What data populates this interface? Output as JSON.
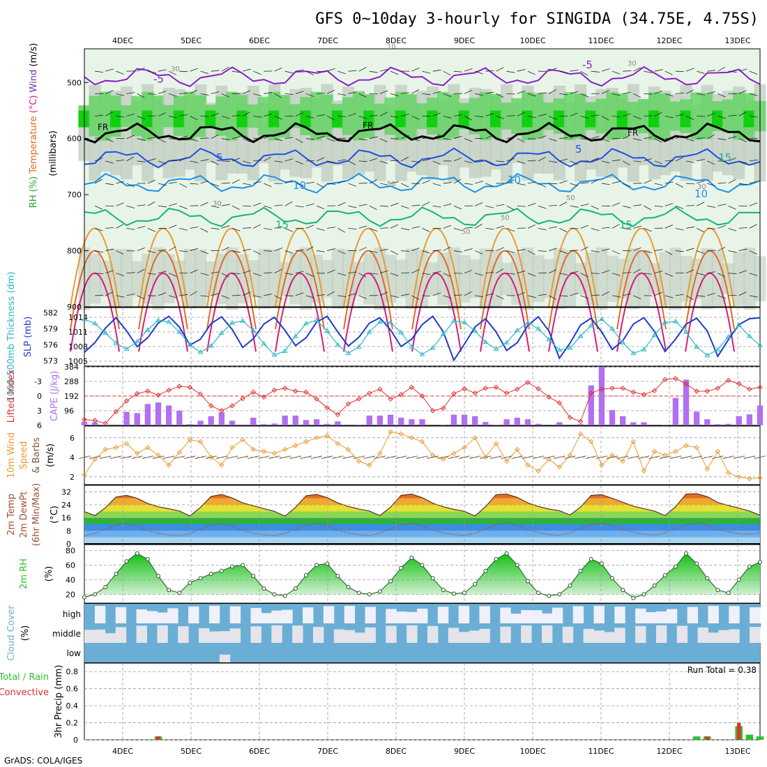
{
  "title": "GFS 0~10day 3-hourly for SINGIDA (34.75E, 4.75S)",
  "footer": "GrADS: COLA/IGES",
  "colors": {
    "rh_light": "#e8f4e8",
    "rh_mid": "#c8e6c8",
    "rh_gray": "#c0ccc0",
    "rh_green": "#5ed35e",
    "rh_bright": "#10d010",
    "t_purple": "#8a1ec8",
    "t_blue": "#1e50e0",
    "t_sky": "#1e90e8",
    "t_teal": "#14b47a",
    "t_orange": "#e89a30",
    "t_dorange": "#e06a20",
    "t_magenta": "#d81a78",
    "slp": "#1e3cc8",
    "thick": "#28b8c8",
    "lifted": "#e03030",
    "cape": "#b070f0",
    "wind": "#e89a30",
    "temp": "#e06a20",
    "dewpt": "#a05030",
    "rh2m": "#30c030",
    "cloud": "#6aaed6",
    "cloud_clear": "#f0f0f8",
    "precip_total": "#30c030",
    "precip_conv": "#e03030"
  },
  "chart_data": {
    "type": "multi-panel",
    "x_dates": [
      "4DEC",
      "5DEC",
      "6DEC",
      "7DEC",
      "8DEC",
      "9DEC",
      "10DEC",
      "11DEC",
      "12DEC",
      "13DEC"
    ],
    "panels": [
      {
        "name": "upper_air",
        "ylabel": "(millibars)",
        "ylabels_colored": [
          {
            "text": "RH (%)",
            "color": "#30a030"
          },
          {
            "text": "Temperature",
            "color": "#e06a20"
          },
          {
            "text": "(°C)",
            "color": "#d81a78"
          },
          {
            "text": "Wind",
            "color": "#7a30b0"
          },
          {
            "text": "(m/s)",
            "color": "#000000"
          }
        ],
        "yticks": [
          500,
          600,
          700,
          800,
          900
        ],
        "ylim": [
          440,
          900
        ],
        "isotherm_labels": [
          "-5",
          "5",
          "10",
          "15",
          "-5",
          "5",
          "10",
          "15",
          "10",
          "15"
        ],
        "freezing_label": "FR",
        "rh_labels": [
          "30",
          "30",
          "50",
          "50",
          "50",
          "50",
          "30",
          "30",
          "10"
        ],
        "isotherms": [
          {
            "temp": -5,
            "mean_pressure": 490
          },
          {
            "temp": 0,
            "mean_pressure": 590
          },
          {
            "temp": 5,
            "mean_pressure": 635
          },
          {
            "temp": 10,
            "mean_pressure": 680
          },
          {
            "temp": 15,
            "mean_pressure": 740
          }
        ]
      },
      {
        "name": "thickness_slp",
        "ylabel_left": "1000-500mb Thickness (dm)",
        "ylabel_right": "SLP (mb)",
        "thickness_ticks": [
          573,
          576,
          579,
          582
        ],
        "slp_ticks": [
          1005,
          1008,
          1011,
          1014
        ],
        "slp_ylim": [
          1004,
          1016
        ],
        "slp": [
          1006.8,
          1008.8,
          1011.8,
          1013.9,
          1011.2,
          1008.0,
          1009.8,
          1012.8,
          1014.2,
          1012.0,
          1008.3,
          1009.5,
          1012.7,
          1014.1,
          1011.5,
          1007.8,
          1009.6,
          1012.6,
          1014.0,
          1011.3,
          1008.2,
          1009.8,
          1013.0,
          1014.2,
          1011.0,
          1008.1,
          1009.9,
          1012.8,
          1013.9,
          1011.4,
          1008.0,
          1009.5,
          1012.5,
          1014.2,
          1011.0,
          1005.2,
          1008.5,
          1012.0,
          1013.7,
          1011.0,
          1007.2,
          1008.8,
          1012.3,
          1014.1,
          1011.2,
          1005.6,
          1008.7,
          1012.4,
          1013.8,
          1011.0,
          1007.4,
          1009.2,
          1012.6,
          1013.9,
          1011.1,
          1007.0,
          1009.5,
          1012.6,
          1013.8,
          1011.2,
          1006.0,
          1009.4,
          1012.5,
          1013.7,
          1013.9
        ],
        "thickness": [
          580.8,
          580.0,
          578.2,
          576.3,
          575.2,
          576.6,
          578.8,
          580.6,
          580.3,
          578.4,
          576.0,
          574.6,
          575.8,
          578.2,
          580.1,
          580.5,
          578.7,
          576.2,
          574.1,
          574.8,
          577.6,
          580.0,
          580.6,
          578.6,
          576.0,
          574.4,
          575.6,
          578.4,
          580.3,
          580.2,
          578.3,
          575.6,
          574.2,
          575.4,
          578.0,
          580.5,
          580.2,
          578.6,
          576.5,
          575.2,
          576.4,
          578.7,
          580.1,
          579.0,
          577.0,
          575.0,
          575.4,
          577.6,
          579.6,
          580.8,
          579.0,
          576.4,
          574.4,
          575.1,
          577.8,
          580.2,
          580.4,
          578.4,
          575.6,
          574.0,
          575.1,
          577.5,
          579.7,
          577.6,
          575.9
        ]
      },
      {
        "name": "lifted_cape",
        "ylabel_left": "Lifted Index",
        "ylabel_right": "CAPE (J/kg)",
        "li_ticks": [
          -3,
          0,
          3,
          6
        ],
        "cape_ticks": [
          96,
          192,
          288,
          384
        ],
        "li_ylim": [
          6,
          -6
        ],
        "cape_ylim": [
          0,
          384
        ],
        "lifted_index": [
          4.8,
          5.0,
          5.6,
          3.2,
          1.0,
          -0.5,
          -1.0,
          -0.2,
          -1.2,
          -2.0,
          -1.8,
          -0.4,
          2.0,
          3.0,
          2.0,
          0.5,
          -0.8,
          0.2,
          -1.2,
          -1.6,
          -1.0,
          -0.8,
          0.6,
          2.4,
          3.8,
          1.6,
          0.6,
          -0.6,
          -1.4,
          0.6,
          -0.3,
          -1.8,
          0.0,
          3.0,
          2.5,
          -0.5,
          -1.5,
          -0.6,
          -1.6,
          -1.8,
          -0.6,
          -1.4,
          -2.8,
          -1.5,
          0.2,
          1.4,
          4.4,
          5.2,
          -0.6,
          -1.4,
          -1.6,
          -1.6,
          -0.8,
          -0.3,
          -1.1,
          -3.4,
          -3.6,
          -2.5,
          -1.0,
          -1.0,
          -1.6,
          -3.2,
          -2.5,
          -1.4,
          -1.8
        ],
        "cape": [
          24,
          20,
          4,
          0,
          88,
          80,
          140,
          150,
          130,
          96,
          8,
          30,
          60,
          85,
          30,
          5,
          50,
          8,
          12,
          64,
          64,
          35,
          40,
          10,
          26,
          0,
          4,
          64,
          64,
          70,
          50,
          40,
          40,
          0,
          4,
          70,
          70,
          60,
          22,
          1,
          40,
          50,
          40,
          10,
          0,
          20,
          0,
          8,
          262,
          390,
          100,
          60,
          20,
          20,
          0,
          4,
          180,
          300,
          90,
          40,
          8,
          10,
          60,
          72,
          130
        ],
        "li_zero_line": 0
      },
      {
        "name": "wind10m",
        "ylabel": "10m Wind Speed & Barbs (m/s)",
        "yticks": [
          2,
          4,
          6
        ],
        "ylim": [
          1.2,
          7.2
        ],
        "speed": [
          2.2,
          3.8,
          4.8,
          5.0,
          5.4,
          4.4,
          5.0,
          4.2,
          3.2,
          4.5,
          5.8,
          5.6,
          4.0,
          3.2,
          5.0,
          5.8,
          4.8,
          4.6,
          4.4,
          4.8,
          5.2,
          5.6,
          6.0,
          6.2,
          5.4,
          4.8,
          3.6,
          3.2,
          4.4,
          6.6,
          6.4,
          6.0,
          5.6,
          4.2,
          3.8,
          4.4,
          5.0,
          6.0,
          4.0,
          5.4,
          3.6,
          4.8,
          3.2,
          2.6,
          3.8,
          3.0,
          4.2,
          6.4,
          5.6,
          3.2,
          4.2,
          3.6,
          5.6,
          2.6,
          4.6,
          4.2,
          4.6,
          5.2,
          5.0,
          2.8,
          4.6,
          2.4,
          2.0,
          1.8,
          1.9
        ]
      },
      {
        "name": "temp2m",
        "ylabel": "2m Temp 2m DewPt (6hr Min/Max) (°C)",
        "yticks": [
          0,
          8,
          16,
          24,
          32
        ],
        "ylim": [
          0,
          36
        ],
        "temperature": [
          19.8,
          17.4,
          22.2,
          28.8,
          29.8,
          28.0,
          24.8,
          22.8,
          21.6,
          20.2,
          17.2,
          22.4,
          29.2,
          30.4,
          28.2,
          25.2,
          23.4,
          21.6,
          20.0,
          17.0,
          22.4,
          29.6,
          30.4,
          28.4,
          25.2,
          23.0,
          21.4,
          20.2,
          17.4,
          22.6,
          29.8,
          30.6,
          28.4,
          25.0,
          22.8,
          21.2,
          20.0,
          17.2,
          22.8,
          30.2,
          30.6,
          28.6,
          25.2,
          23.0,
          21.4,
          20.4,
          17.8,
          22.6,
          29.8,
          30.2,
          28.0,
          25.6,
          23.2,
          21.6,
          20.2,
          17.4,
          22.8,
          30.6,
          30.8,
          29.0,
          25.4,
          23.6,
          22.0,
          20.2,
          17.6
        ],
        "dewpoint": [
          5.0,
          6.5,
          9.0,
          11.4,
          12.6,
          11.0,
          8.0,
          6.6,
          5.4,
          5.0,
          6.4,
          9.0,
          11.4,
          12.6,
          11.0,
          8.2,
          6.6,
          5.6,
          5.0,
          6.4,
          9.0,
          11.6,
          12.8,
          11.2,
          8.2,
          6.8,
          5.6,
          5.0,
          6.6,
          9.2,
          11.6,
          12.8,
          11.0,
          8.2,
          6.8,
          5.8,
          5.2,
          6.6,
          9.2,
          11.8,
          13.0,
          11.4,
          8.4,
          7.0,
          5.8,
          5.2,
          6.8,
          9.4,
          11.8,
          13.0,
          11.4,
          8.6,
          7.2,
          6.0,
          5.4,
          6.8,
          9.4,
          11.8,
          13.0,
          11.4,
          8.6,
          7.4,
          6.2,
          6.0,
          6.8
        ]
      },
      {
        "name": "rh2m",
        "ylabel": "2m RH (%)",
        "yticks": [
          20,
          40,
          60,
          80
        ],
        "ylim": [
          8,
          88
        ],
        "rh": [
          16,
          20,
          30,
          48,
          65,
          76,
          68,
          45,
          26,
          22,
          36,
          42,
          48,
          52,
          58,
          60,
          45,
          28,
          20,
          18,
          28,
          46,
          60,
          62,
          45,
          30,
          22,
          20,
          24,
          38,
          56,
          70,
          60,
          42,
          26,
          21,
          22,
          34,
          52,
          68,
          76,
          60,
          38,
          22,
          18,
          20,
          32,
          52,
          68,
          62,
          42,
          26,
          15,
          20,
          32,
          46,
          58,
          76,
          62,
          42,
          26,
          22,
          40,
          58,
          64
        ]
      },
      {
        "name": "cloud_cover",
        "ylabel": "Cloud Cover (%)",
        "levels": [
          "high",
          "middle",
          "low"
        ]
      },
      {
        "name": "precip",
        "ylabel": "3hr Precip (mm)",
        "ylabel_legend": [
          "Total / Rain",
          "Convective"
        ],
        "yticks": [
          0,
          0.2,
          0.4,
          0.6,
          0.8
        ],
        "ylim": [
          0,
          0.9
        ],
        "run_total_label": "Run Total = 0.38",
        "total": [
          0,
          0,
          0,
          0,
          0,
          0,
          0,
          0.04,
          0,
          0,
          0,
          0,
          0,
          0,
          0,
          0,
          0,
          0,
          0,
          0,
          0,
          0,
          0,
          0,
          0,
          0,
          0,
          0,
          0,
          0,
          0,
          0,
          0,
          0,
          0,
          0,
          0,
          0,
          0,
          0,
          0,
          0,
          0,
          0,
          0,
          0,
          0,
          0,
          0,
          0,
          0,
          0,
          0,
          0,
          0,
          0,
          0,
          0,
          0.04,
          0.04,
          0,
          0,
          0.16,
          0.06,
          0.04
        ],
        "convective": [
          0,
          0,
          0,
          0,
          0,
          0,
          0,
          0.04,
          0,
          0,
          0,
          0,
          0,
          0,
          0,
          0,
          0,
          0,
          0,
          0,
          0,
          0,
          0,
          0,
          0,
          0,
          0,
          0,
          0,
          0,
          0,
          0,
          0,
          0,
          0,
          0,
          0,
          0,
          0,
          0,
          0,
          0,
          0,
          0,
          0,
          0,
          0,
          0,
          0,
          0,
          0,
          0,
          0,
          0,
          0,
          0,
          0,
          0,
          0,
          0.04,
          0,
          0,
          0.2,
          0,
          0
        ]
      }
    ]
  }
}
